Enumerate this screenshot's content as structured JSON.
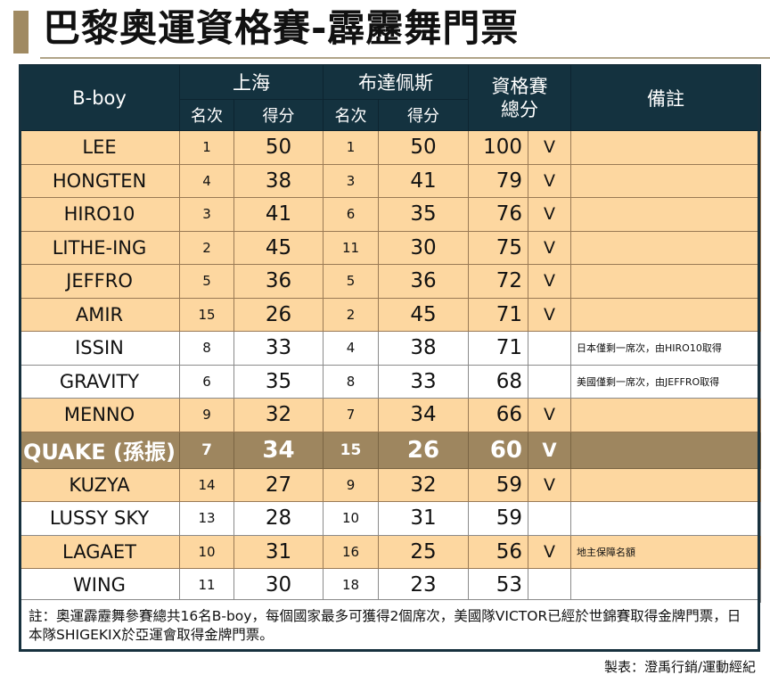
{
  "title": "巴黎奧運資格賽-霹靂舞門票",
  "colors": {
    "accent": "#a08a62",
    "header_bg": "#14323f",
    "peach": "#fdd7a0",
    "highlight": "#9e865f"
  },
  "table": {
    "headers": {
      "name": "B-boy",
      "event1": "上海",
      "event2": "布達佩斯",
      "total_line1": "資格賽",
      "total_line2": "總分",
      "notes": "備註",
      "rank": "名次",
      "score": "得分"
    },
    "rows": [
      {
        "name": "LEE",
        "r1": "1",
        "s1": "50",
        "r2": "1",
        "s2": "50",
        "total": "100",
        "mark": "V",
        "note": ""
      },
      {
        "name": "HONGTEN",
        "r1": "4",
        "s1": "38",
        "r2": "3",
        "s2": "41",
        "total": "79",
        "mark": "V",
        "note": ""
      },
      {
        "name": "HIRO10",
        "r1": "3",
        "s1": "41",
        "r2": "6",
        "s2": "35",
        "total": "76",
        "mark": "V",
        "note": ""
      },
      {
        "name": "LITHE-ING",
        "r1": "2",
        "s1": "45",
        "r2": "11",
        "s2": "30",
        "total": "75",
        "mark": "V",
        "note": ""
      },
      {
        "name": "JEFFRO",
        "r1": "5",
        "s1": "36",
        "r2": "5",
        "s2": "36",
        "total": "72",
        "mark": "V",
        "note": ""
      },
      {
        "name": "AMIR",
        "r1": "15",
        "s1": "26",
        "r2": "2",
        "s2": "45",
        "total": "71",
        "mark": "V",
        "note": ""
      },
      {
        "name": "ISSIN",
        "r1": "8",
        "s1": "33",
        "r2": "4",
        "s2": "38",
        "total": "71",
        "mark": "",
        "note": "日本僅剩一席次，由HIRO10取得"
      },
      {
        "name": "GRAVITY",
        "r1": "6",
        "s1": "35",
        "r2": "8",
        "s2": "33",
        "total": "68",
        "mark": "",
        "note": "美國僅剩一席次，由JEFFRO取得"
      },
      {
        "name": "MENNO",
        "r1": "9",
        "s1": "32",
        "r2": "7",
        "s2": "34",
        "total": "66",
        "mark": "V",
        "note": ""
      },
      {
        "name": "QUAKE (孫振)",
        "r1": "7",
        "s1": "34",
        "r2": "15",
        "s2": "26",
        "total": "60",
        "mark": "V",
        "note": ""
      },
      {
        "name": "KUZYA",
        "r1": "14",
        "s1": "27",
        "r2": "9",
        "s2": "32",
        "total": "59",
        "mark": "V",
        "note": ""
      },
      {
        "name": "LUSSY SKY",
        "r1": "13",
        "s1": "28",
        "r2": "10",
        "s2": "31",
        "total": "59",
        "mark": "",
        "note": ""
      },
      {
        "name": "LAGAET",
        "r1": "10",
        "s1": "31",
        "r2": "16",
        "s2": "25",
        "total": "56",
        "mark": "V",
        "note": "地主保障名額"
      },
      {
        "name": "WING",
        "r1": "11",
        "s1": "30",
        "r2": "18",
        "s2": "23",
        "total": "53",
        "mark": "",
        "note": ""
      }
    ]
  },
  "footnote": "註：奧運霹靂舞參賽總共16名B-boy，每個國家最多可獲得2個席次，美國隊VICTOR已經於世錦賽取得金牌門票，日本隊SHIGEKIX於亞運會取得金牌門票。",
  "credit": "製表：澄禹行銷/運動經紀"
}
